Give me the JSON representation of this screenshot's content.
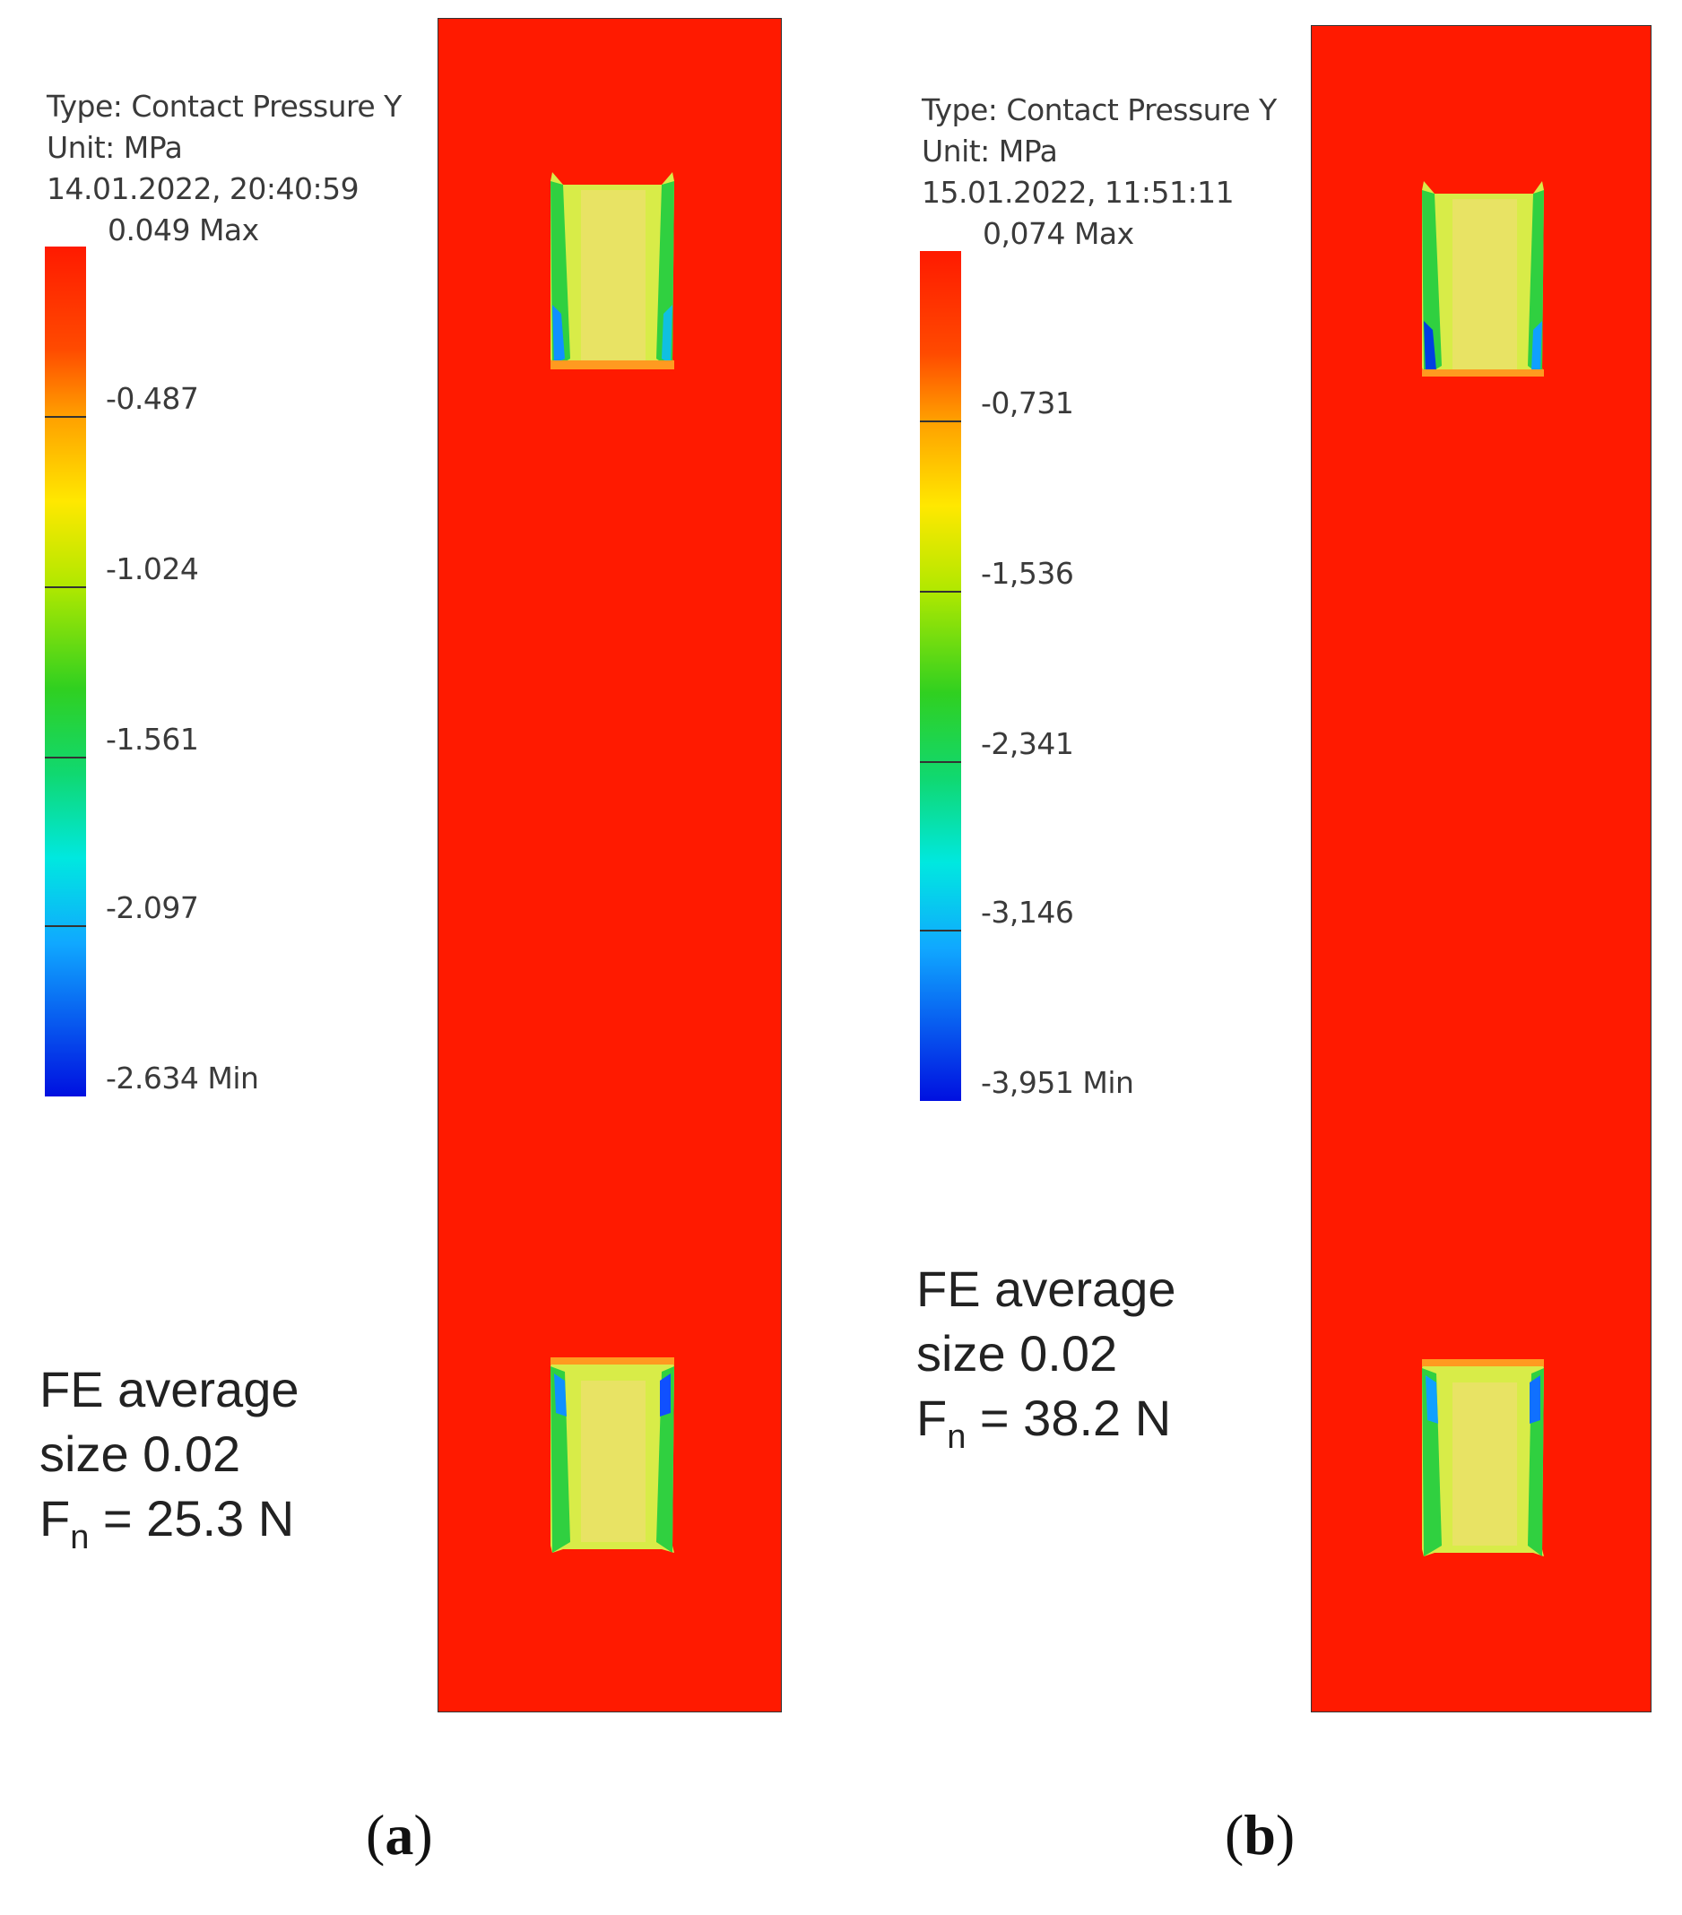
{
  "panels": [
    {
      "id": "a",
      "type_line": "Type: Contact Pressure Y",
      "unit_line": "Unit: MPa",
      "timestamp": "14.01.2022, 20:40:59",
      "max_label": "0.049 Max",
      "ticks": [
        "-0.487",
        "-1.024",
        "-1.561",
        "-2.097",
        "-2.634 Min"
      ],
      "fe_line1": "FE average",
      "fe_line2": "size 0.02",
      "fn_symbol": "F",
      "fn_sub": "n",
      "fn_value": " = 25.3 N",
      "caption_letter": "a"
    },
    {
      "id": "b",
      "type_line": "Type: Contact Pressure Y",
      "unit_line": "Unit: MPa",
      "timestamp": "15.01.2022, 11:51:11",
      "max_label": "0,074 Max",
      "ticks": [
        "-0,731",
        "-1,536",
        "-2,341",
        "-3,146",
        "-3,951 Min"
      ],
      "fe_line1": "FE average",
      "fe_line2": "size 0.02",
      "fn_symbol": "F",
      "fn_sub": "n",
      "fn_value": " = 38.2 N",
      "caption_letter": "b"
    }
  ],
  "colors": {
    "plate_red": "#ff1a00",
    "scale_stops": [
      "#ff1a00",
      "#ff8c00",
      "#ffe000",
      "#a0e800",
      "#20d020",
      "#10e0a0",
      "#00e8ff",
      "#1080ff",
      "#0010e0"
    ]
  }
}
